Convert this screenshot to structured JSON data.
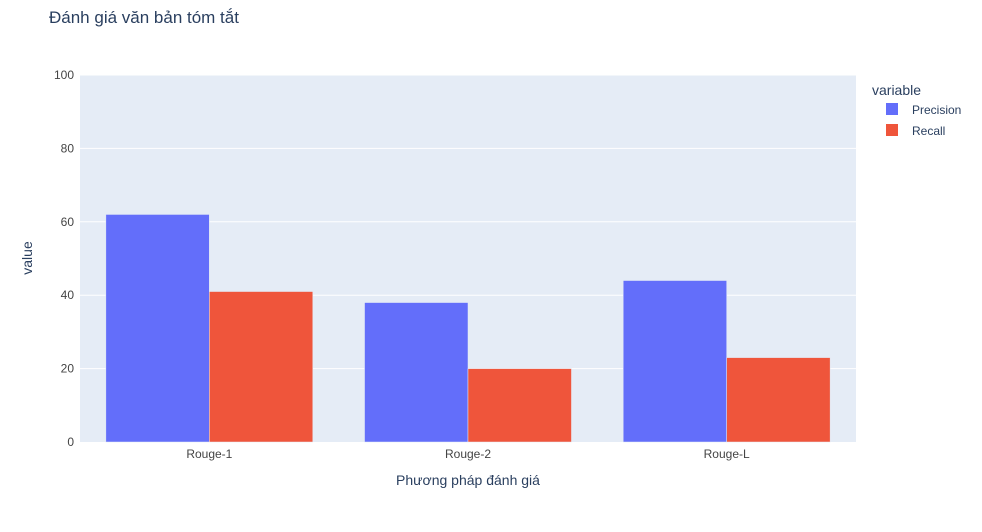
{
  "chart_data": {
    "type": "bar",
    "title": "Đánh giá văn bản tóm tắt",
    "xlabel": "Phương pháp đánh giá",
    "ylabel": "value",
    "categories": [
      "Rouge-1",
      "Rouge-2",
      "Rouge-L"
    ],
    "series": [
      {
        "name": "Precision",
        "values": [
          62,
          38,
          44
        ],
        "color": "#636efa"
      },
      {
        "name": "Recall",
        "values": [
          41,
          20,
          23
        ],
        "color": "#ef553b"
      }
    ],
    "ylim": [
      0,
      100
    ],
    "yticks": [
      0,
      20,
      40,
      60,
      80,
      100
    ],
    "grid": true,
    "legend": {
      "title": "variable",
      "position": "top-right"
    },
    "colors": {
      "plot_background": "#e5ecf6",
      "grid": "#ffffff",
      "text": "#2a3f5f",
      "tick_text": "#444444"
    }
  }
}
